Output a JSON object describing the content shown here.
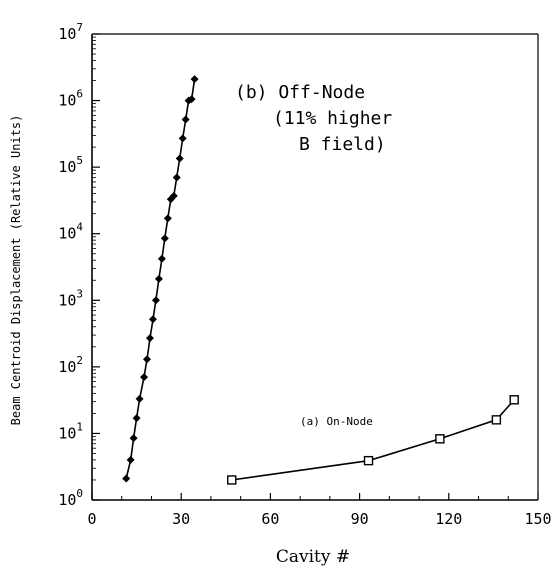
{
  "chart_data": {
    "type": "line",
    "xlabel": "Cavity #",
    "ylabel": "Beam Centroid Displacement (Relative Units)",
    "xlim": [
      0,
      150
    ],
    "ylim": [
      1,
      10000000
    ],
    "y_scale": "log",
    "x_ticks": [
      "0",
      "30",
      "60",
      "90",
      "120",
      "150"
    ],
    "y_ticks": [
      {
        "base": "10",
        "exp": "0"
      },
      {
        "base": "10",
        "exp": "1"
      },
      {
        "base": "10",
        "exp": "2"
      },
      {
        "base": "10",
        "exp": "3"
      },
      {
        "base": "10",
        "exp": "4"
      },
      {
        "base": "10",
        "exp": "5"
      },
      {
        "base": "10",
        "exp": "6"
      },
      {
        "base": "10",
        "exp": "7"
      }
    ],
    "annotations": [
      {
        "lines": [
          "(b) Off-Node",
          "(11% higher",
          "B field)"
        ]
      },
      {
        "lines": [
          "(a) On-Node"
        ]
      }
    ],
    "series": [
      {
        "marker": "filled-diamond",
        "x": [
          11.5,
          13,
          14,
          15,
          16,
          17.5,
          18.5,
          19.5,
          20.5,
          21.5,
          22.5,
          23.5,
          24.5,
          25.5,
          26.5,
          27.5,
          28.5,
          29.5,
          30.5,
          31.5,
          32.5,
          33.5,
          34.5
        ],
        "y": [
          2.1,
          4.0,
          8.5,
          17,
          33,
          70,
          130,
          270,
          520,
          1000,
          2100,
          4200,
          8500,
          17000,
          33000,
          37000,
          70000,
          135000,
          270000,
          520000,
          1000000,
          1050000,
          2100000
        ]
      },
      {
        "marker": "open-square",
        "x": [
          47,
          93,
          117,
          136,
          142
        ],
        "y": [
          2.0,
          3.9,
          8.3,
          16,
          32
        ]
      }
    ]
  }
}
